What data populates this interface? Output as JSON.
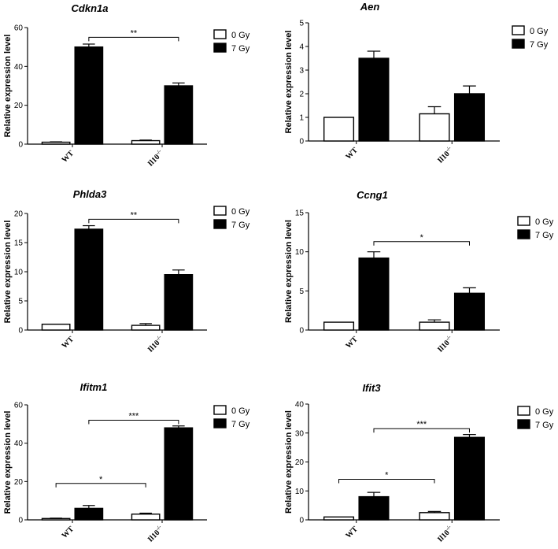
{
  "chart_data": [
    {
      "type": "bar",
      "title": "Cdkn1a",
      "ylabel": "Relative expression level",
      "categories": [
        "WT",
        "Il10⁻/⁻"
      ],
      "category_base": [
        "WT",
        "Il10"
      ],
      "category_sup": [
        "",
        "-/-"
      ],
      "series": [
        {
          "name": "0 Gy",
          "values": [
            1,
            1.8
          ],
          "errors": [
            0.2,
            0.3
          ],
          "fill": "#ffffff"
        },
        {
          "name": "7 Gy",
          "values": [
            50,
            30
          ],
          "errors": [
            1.5,
            1.5
          ],
          "fill": "#000000"
        }
      ],
      "ylim": [
        0,
        60
      ],
      "yticks": [
        0,
        20,
        40,
        60
      ],
      "legend_position": "top-right",
      "significance": [
        {
          "from": [
            0,
            1
          ],
          "to": [
            1,
            1
          ],
          "y": 55,
          "label": "**"
        }
      ]
    },
    {
      "type": "bar",
      "title": "Aen",
      "ylabel": "Relative expression level",
      "categories": [
        "WT",
        "Il10⁻/⁻"
      ],
      "category_base": [
        "WT",
        "Il10"
      ],
      "category_sup": [
        "",
        "-/-"
      ],
      "series": [
        {
          "name": "0 Gy",
          "values": [
            1,
            1.15
          ],
          "errors": [
            0,
            0.3
          ],
          "fill": "#ffffff"
        },
        {
          "name": "7 Gy",
          "values": [
            3.5,
            2.0
          ],
          "errors": [
            0.3,
            0.33
          ],
          "fill": "#000000"
        }
      ],
      "ylim": [
        0,
        5
      ],
      "yticks": [
        0,
        1,
        2,
        3,
        4,
        5
      ],
      "legend_position": "top-right",
      "significance": []
    },
    {
      "type": "bar",
      "title": "Phlda3",
      "ylabel": "Relative expression level",
      "categories": [
        "WT",
        "Il10⁻/⁻"
      ],
      "category_base": [
        "WT",
        "Il10"
      ],
      "category_sup": [
        "",
        "-/-"
      ],
      "series": [
        {
          "name": "0 Gy",
          "values": [
            1,
            0.8
          ],
          "errors": [
            0,
            0.3
          ],
          "fill": "#ffffff"
        },
        {
          "name": "7 Gy",
          "values": [
            17.3,
            9.5
          ],
          "errors": [
            0.6,
            0.8
          ],
          "fill": "#000000"
        }
      ],
      "ylim": [
        0,
        20
      ],
      "yticks": [
        0,
        5,
        10,
        15,
        20
      ],
      "legend_position": "top-right",
      "significance": [
        {
          "from": [
            0,
            1
          ],
          "to": [
            1,
            1
          ],
          "y": 19,
          "label": "**"
        }
      ]
    },
    {
      "type": "bar",
      "title": "Ccng1",
      "ylabel": "Relative expression level",
      "categories": [
        "WT",
        "Il10⁻/⁻"
      ],
      "category_base": [
        "WT",
        "Il10"
      ],
      "category_sup": [
        "",
        "-/-"
      ],
      "series": [
        {
          "name": "0 Gy",
          "values": [
            1,
            1.0
          ],
          "errors": [
            0,
            0.3
          ],
          "fill": "#ffffff"
        },
        {
          "name": "7 Gy",
          "values": [
            9.2,
            4.7
          ],
          "errors": [
            0.8,
            0.7
          ],
          "fill": "#000000"
        }
      ],
      "ylim": [
        0,
        15
      ],
      "yticks": [
        0,
        5,
        10,
        15
      ],
      "legend_position": "top-right",
      "significance": [
        {
          "from": [
            0,
            1
          ],
          "to": [
            1,
            1
          ],
          "y": 11.3,
          "label": "*"
        }
      ]
    },
    {
      "type": "bar",
      "title": "Ifitm1",
      "ylabel": "Relative expression level",
      "categories": [
        "WT",
        "Il10⁻/⁻"
      ],
      "category_base": [
        "WT",
        "Il10"
      ],
      "category_sup": [
        "",
        "-/-"
      ],
      "series": [
        {
          "name": "0 Gy",
          "values": [
            0.7,
            3.0
          ],
          "errors": [
            0.2,
            0.5
          ],
          "fill": "#ffffff"
        },
        {
          "name": "7 Gy",
          "values": [
            6,
            48
          ],
          "errors": [
            1.5,
            1.0
          ],
          "fill": "#000000"
        }
      ],
      "ylim": [
        0,
        60
      ],
      "yticks": [
        0,
        20,
        40,
        60
      ],
      "legend_position": "top-right",
      "significance": [
        {
          "from": [
            0,
            0
          ],
          "to": [
            1,
            0
          ],
          "y": 19,
          "label": "*"
        },
        {
          "from": [
            0,
            1
          ],
          "to": [
            1,
            1
          ],
          "y": 52,
          "label": "***"
        }
      ]
    },
    {
      "type": "bar",
      "title": "Ifit3",
      "ylabel": "Relative expression level",
      "categories": [
        "WT",
        "Il10⁻/⁻"
      ],
      "category_base": [
        "WT",
        "Il10"
      ],
      "category_sup": [
        "",
        "-/-"
      ],
      "series": [
        {
          "name": "0 Gy",
          "values": [
            1,
            2.5
          ],
          "errors": [
            0,
            0.4
          ],
          "fill": "#ffffff"
        },
        {
          "name": "7 Gy",
          "values": [
            8,
            28.5
          ],
          "errors": [
            1.5,
            1.0
          ],
          "fill": "#000000"
        }
      ],
      "ylim": [
        0,
        40
      ],
      "yticks": [
        0,
        10,
        20,
        30,
        40
      ],
      "legend_position": "top-right",
      "significance": [
        {
          "from": [
            0,
            0
          ],
          "to": [
            1,
            0
          ],
          "y": 14,
          "label": "*"
        },
        {
          "from": [
            0,
            1
          ],
          "to": [
            1,
            1
          ],
          "y": 31.5,
          "label": "***"
        }
      ]
    }
  ]
}
